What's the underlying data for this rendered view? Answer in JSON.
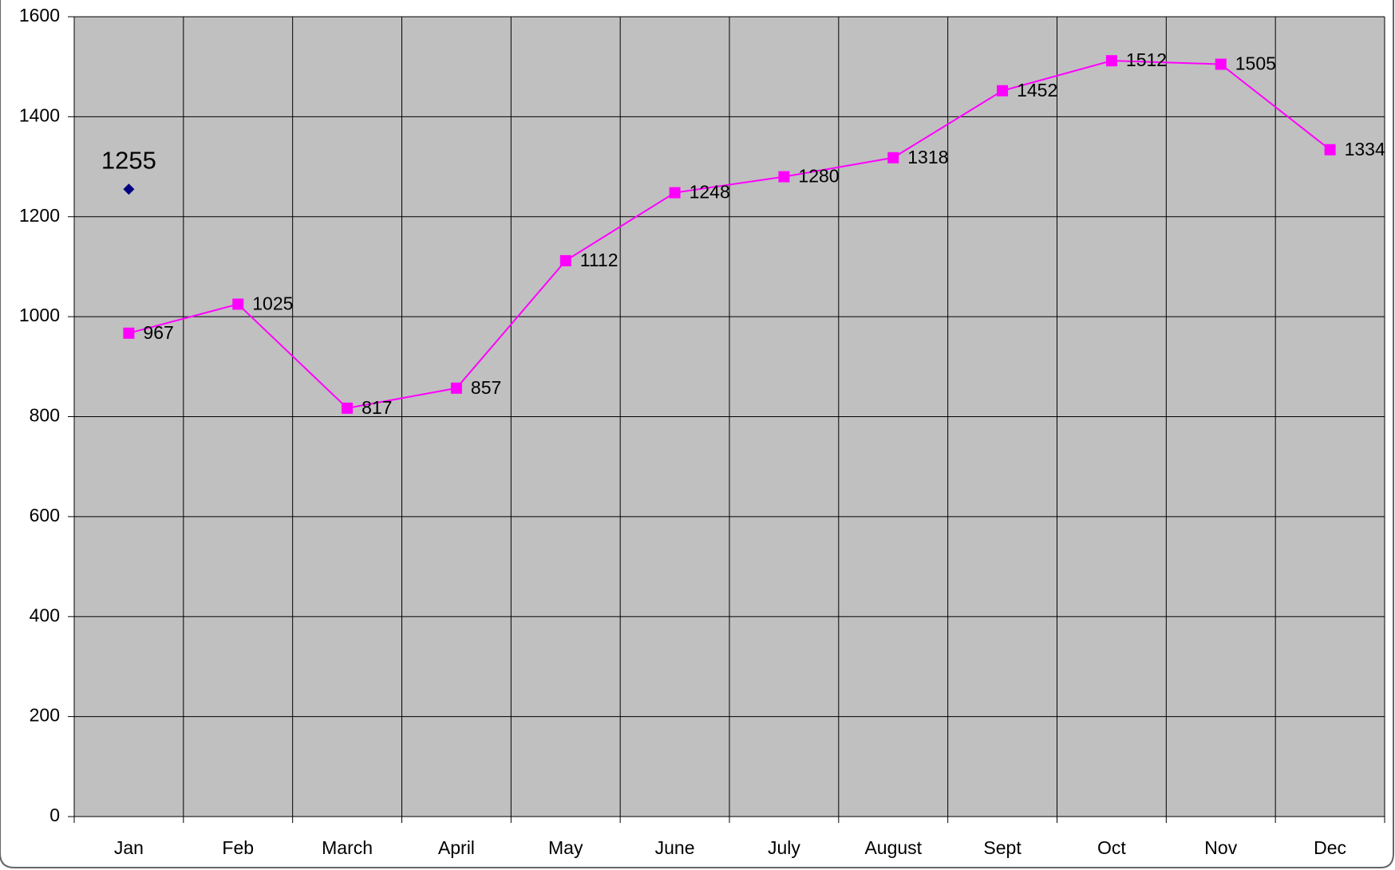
{
  "chart_data": {
    "type": "line",
    "categories": [
      "Jan",
      "Feb",
      "March",
      "April",
      "May",
      "June",
      "July",
      "August",
      "Sept",
      "Oct",
      "Nov",
      "Dec"
    ],
    "series": [
      {
        "color": "#ff00ff",
        "marker": "square",
        "values": [
          967,
          1025,
          817,
          857,
          1112,
          1248,
          1280,
          1318,
          1452,
          1512,
          1505,
          1334
        ]
      },
      {
        "color": "#000080",
        "marker": "diamond",
        "values": [
          1255,
          null,
          null,
          null,
          null,
          null,
          null,
          null,
          null,
          null,
          null,
          null
        ]
      }
    ],
    "ylim": [
      0,
      1600
    ],
    "yticks": [
      0,
      200,
      400,
      600,
      800,
      1000,
      1200,
      1400,
      1600
    ],
    "grid": true,
    "background": "#c0c0c0",
    "data_labels": true
  }
}
